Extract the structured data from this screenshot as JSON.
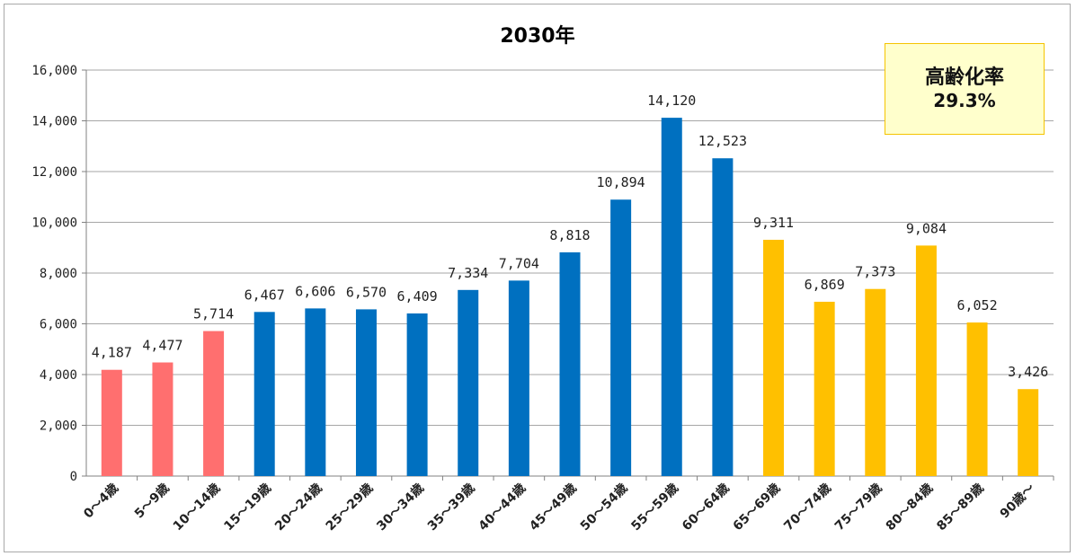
{
  "chart_data": {
    "type": "bar",
    "title": "2030年",
    "ylim": [
      0,
      16000
    ],
    "yticks": [
      "0",
      "2,000",
      "4,000",
      "6,000",
      "8,000",
      "10,000",
      "12,000",
      "14,000",
      "16,000"
    ],
    "grid": true,
    "categories": [
      "0～4歳",
      "5～9歳",
      "10～14歳",
      "15～19歳",
      "20～24歳",
      "25～29歳",
      "30～34歳",
      "35～39歳",
      "40～44歳",
      "45～49歳",
      "50～54歳",
      "55～59歳",
      "60～64歳",
      "65～69歳",
      "70～74歳",
      "75～79歳",
      "80～84歳",
      "85～89歳",
      "90歳～"
    ],
    "values": [
      4187,
      4477,
      5714,
      6467,
      6606,
      6570,
      6409,
      7334,
      7704,
      8818,
      10894,
      14120,
      12523,
      9311,
      6869,
      7373,
      9084,
      6052,
      3426
    ],
    "value_labels": [
      "4,187",
      "4,477",
      "5,714",
      "6,467",
      "6,606",
      "6,570",
      "6,409",
      "7,334",
      "7,704",
      "8,818",
      "10,894",
      "14,120",
      "12,523",
      "9,311",
      "6,869",
      "7,373",
      "9,084",
      "6,052",
      "3,426"
    ],
    "bar_colors": [
      "#ff6f6f",
      "#ff6f6f",
      "#ff6f6f",
      "#0070c0",
      "#0070c0",
      "#0070c0",
      "#0070c0",
      "#0070c0",
      "#0070c0",
      "#0070c0",
      "#0070c0",
      "#0070c0",
      "#0070c0",
      "#ffc000",
      "#ffc000",
      "#ffc000",
      "#ffc000",
      "#ffc000",
      "#ffc000"
    ]
  },
  "callout": {
    "label": "高齢化率",
    "value": "29.3%"
  }
}
